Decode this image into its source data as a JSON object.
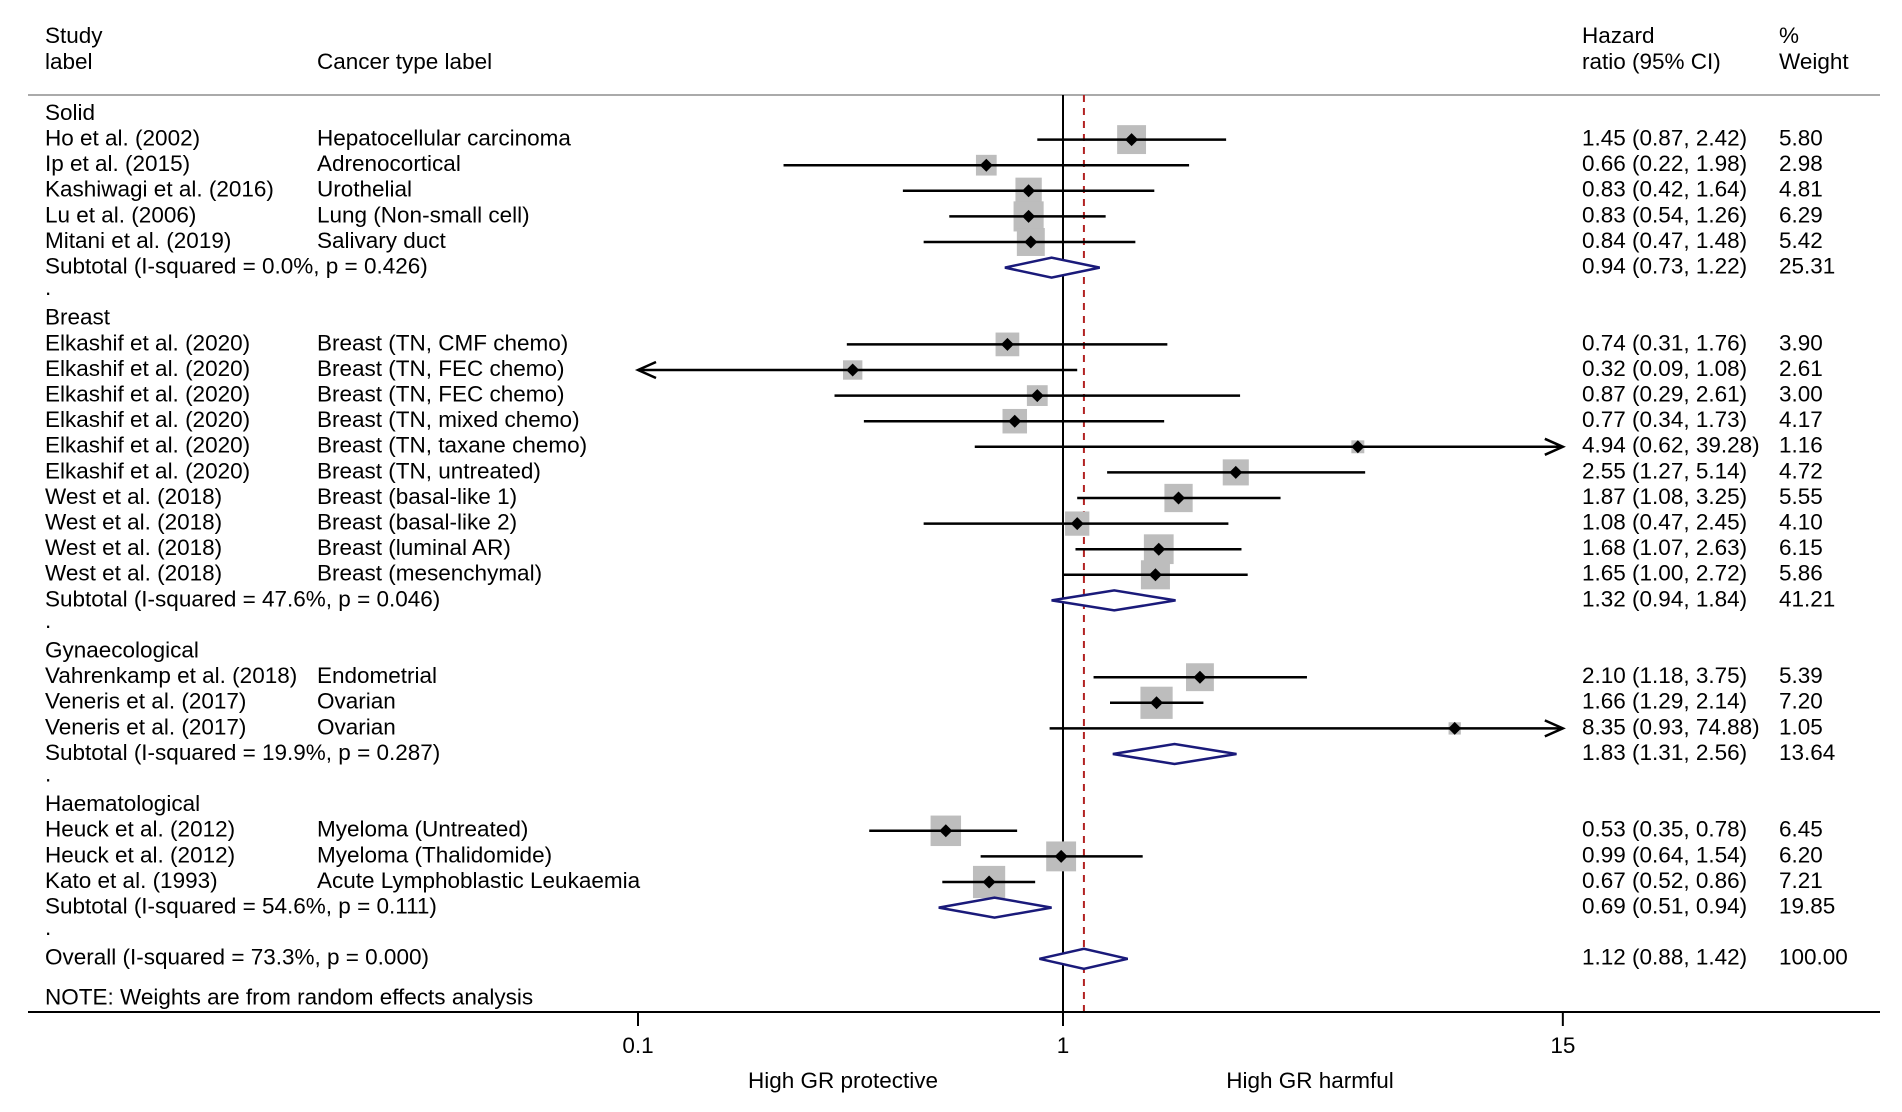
{
  "chart_data": {
    "type": "forest",
    "scale": "log",
    "x_ticks": [
      0.1,
      1,
      15
    ],
    "x_tick_labels": [
      "0.1",
      "1",
      "15"
    ],
    "null_line": 1,
    "overall_line": 1.12,
    "xlabel_left": "High GR protective",
    "xlabel_right": "High GR harmful",
    "header": {
      "study_line1": "Study",
      "study_line2": "label",
      "cancer": "Cancer type label",
      "hr_line1": "Hazard",
      "hr_line2": "ratio (95% CI)",
      "weight_line1": "%",
      "weight_line2": "Weight"
    },
    "note": "NOTE: Weights are from random effects analysis",
    "rows": [
      {
        "kind": "group",
        "label": "Solid"
      },
      {
        "kind": "study",
        "study": "Ho et al. (2002)",
        "cancer": "Hepatocellular carcinoma",
        "hr": 1.45,
        "lo": 0.87,
        "hi": 2.42,
        "ci_text": "1.45 (0.87, 2.42)",
        "weight": "5.80"
      },
      {
        "kind": "study",
        "study": "Ip et al. (2015)",
        "cancer": "Adrenocortical",
        "hr": 0.66,
        "lo": 0.22,
        "hi": 1.98,
        "ci_text": "0.66 (0.22, 1.98)",
        "weight": "2.98"
      },
      {
        "kind": "study",
        "study": "Kashiwagi et al. (2016)",
        "cancer": "Urothelial",
        "hr": 0.83,
        "lo": 0.42,
        "hi": 1.64,
        "ci_text": "0.83 (0.42, 1.64)",
        "weight": "4.81"
      },
      {
        "kind": "study",
        "study": "Lu et al. (2006)",
        "cancer": "Lung (Non-small cell)",
        "hr": 0.83,
        "lo": 0.54,
        "hi": 1.26,
        "ci_text": "0.83 (0.54, 1.26)",
        "weight": "6.29"
      },
      {
        "kind": "study",
        "study": "Mitani et al. (2019)",
        "cancer": "Salivary duct",
        "hr": 0.84,
        "lo": 0.47,
        "hi": 1.48,
        "ci_text": "0.84 (0.47, 1.48)",
        "weight": "5.42"
      },
      {
        "kind": "subtotal",
        "label": "Subtotal  (I-squared = 0.0%, p = 0.426)",
        "hr": 0.94,
        "lo": 0.73,
        "hi": 1.22,
        "ci_text": "0.94 (0.73, 1.22)",
        "weight": "25.31"
      },
      {
        "kind": "dot",
        "label": "."
      },
      {
        "kind": "group",
        "label": "Breast"
      },
      {
        "kind": "study",
        "study": "Elkashif et al. (2020)",
        "cancer": "Breast (TN, CMF chemo)",
        "hr": 0.74,
        "lo": 0.31,
        "hi": 1.76,
        "ci_text": "0.74 (0.31, 1.76)",
        "weight": "3.90"
      },
      {
        "kind": "study",
        "study": "Elkashif et al. (2020)",
        "cancer": "Breast (TN, FEC chemo)",
        "hr": 0.32,
        "lo": 0.09,
        "hi": 1.08,
        "ci_text": "0.32 (0.09, 1.08)",
        "weight": "2.61"
      },
      {
        "kind": "study",
        "study": "Elkashif et al. (2020)",
        "cancer": "Breast (TN, FEC chemo)",
        "hr": 0.87,
        "lo": 0.29,
        "hi": 2.61,
        "ci_text": "0.87 (0.29, 2.61)",
        "weight": "3.00"
      },
      {
        "kind": "study",
        "study": "Elkashif et al. (2020)",
        "cancer": "Breast (TN, mixed chemo)",
        "hr": 0.77,
        "lo": 0.34,
        "hi": 1.73,
        "ci_text": "0.77 (0.34, 1.73)",
        "weight": "4.17"
      },
      {
        "kind": "study",
        "study": "Elkashif et al. (2020)",
        "cancer": "Breast (TN, taxane chemo)",
        "hr": 4.94,
        "lo": 0.62,
        "hi": 39.28,
        "ci_text": "4.94 (0.62, 39.28)",
        "weight": "1.16"
      },
      {
        "kind": "study",
        "study": "Elkashif et al. (2020)",
        "cancer": "Breast (TN, untreated)",
        "hr": 2.55,
        "lo": 1.27,
        "hi": 5.14,
        "ci_text": "2.55 (1.27, 5.14)",
        "weight": "4.72"
      },
      {
        "kind": "study",
        "study": "West et al. (2018)",
        "cancer": "Breast (basal-like 1)",
        "hr": 1.87,
        "lo": 1.08,
        "hi": 3.25,
        "ci_text": "1.87 (1.08, 3.25)",
        "weight": "5.55"
      },
      {
        "kind": "study",
        "study": "West et al. (2018)",
        "cancer": "Breast (basal-like 2)",
        "hr": 1.08,
        "lo": 0.47,
        "hi": 2.45,
        "ci_text": "1.08 (0.47, 2.45)",
        "weight": "4.10"
      },
      {
        "kind": "study",
        "study": "West et al. (2018)",
        "cancer": "Breast (luminal AR)",
        "hr": 1.68,
        "lo": 1.07,
        "hi": 2.63,
        "ci_text": "1.68 (1.07, 2.63)",
        "weight": "6.15"
      },
      {
        "kind": "study",
        "study": "West et al. (2018)",
        "cancer": "Breast (mesenchymal)",
        "hr": 1.65,
        "lo": 1.0,
        "hi": 2.72,
        "ci_text": "1.65 (1.00, 2.72)",
        "weight": "5.86"
      },
      {
        "kind": "subtotal",
        "label": "Subtotal  (I-squared = 47.6%, p = 0.046)",
        "hr": 1.32,
        "lo": 0.94,
        "hi": 1.84,
        "ci_text": "1.32 (0.94, 1.84)",
        "weight": "41.21"
      },
      {
        "kind": "dot",
        "label": "."
      },
      {
        "kind": "group",
        "label": "Gynaecological"
      },
      {
        "kind": "study",
        "study": "Vahrenkamp et al. (2018)",
        "cancer": "Endometrial",
        "hr": 2.1,
        "lo": 1.18,
        "hi": 3.75,
        "ci_text": "2.10 (1.18, 3.75)",
        "weight": "5.39"
      },
      {
        "kind": "study",
        "study": "Veneris et al. (2017)",
        "cancer": "Ovarian",
        "hr": 1.66,
        "lo": 1.29,
        "hi": 2.14,
        "ci_text": "1.66 (1.29, 2.14)",
        "weight": "7.20"
      },
      {
        "kind": "study",
        "study": "Veneris et al. (2017)",
        "cancer": "Ovarian",
        "hr": 8.35,
        "lo": 0.93,
        "hi": 74.88,
        "ci_text": "8.35 (0.93, 74.88)",
        "weight": "1.05"
      },
      {
        "kind": "subtotal",
        "label": "Subtotal  (I-squared = 19.9%, p = 0.287)",
        "hr": 1.83,
        "lo": 1.31,
        "hi": 2.56,
        "ci_text": "1.83 (1.31, 2.56)",
        "weight": "13.64"
      },
      {
        "kind": "dot",
        "label": "."
      },
      {
        "kind": "group",
        "label": "Haematological"
      },
      {
        "kind": "study",
        "study": "Heuck et al. (2012)",
        "cancer": "Myeloma (Untreated)",
        "hr": 0.53,
        "lo": 0.35,
        "hi": 0.78,
        "ci_text": "0.53 (0.35, 0.78)",
        "weight": "6.45"
      },
      {
        "kind": "study",
        "study": "Heuck et al. (2012)",
        "cancer": "Myeloma (Thalidomide)",
        "hr": 0.99,
        "lo": 0.64,
        "hi": 1.54,
        "ci_text": "0.99 (0.64, 1.54)",
        "weight": "6.20"
      },
      {
        "kind": "study",
        "study": "Kato et al. (1993)",
        "cancer": "Acute Lymphoblastic Leukaemia",
        "hr": 0.67,
        "lo": 0.52,
        "hi": 0.86,
        "ci_text": "0.67 (0.52, 0.86)",
        "weight": "7.21"
      },
      {
        "kind": "subtotal",
        "label": "Subtotal  (I-squared = 54.6%, p = 0.111)",
        "hr": 0.69,
        "lo": 0.51,
        "hi": 0.94,
        "ci_text": "0.69 (0.51, 0.94)",
        "weight": "19.85"
      },
      {
        "kind": "dot",
        "label": "."
      },
      {
        "kind": "overall",
        "label": "Overall  (I-squared = 73.3%, p = 0.000)",
        "hr": 1.12,
        "lo": 0.88,
        "hi": 1.42,
        "ci_text": "1.12 (0.88, 1.42)",
        "weight": "100.00"
      }
    ]
  },
  "colors": {
    "box": "#bdbdbd",
    "diamond": "#1a1a7a",
    "overall_line": "#b22222",
    "line": "#000000",
    "rule": "#aaaaaa"
  }
}
